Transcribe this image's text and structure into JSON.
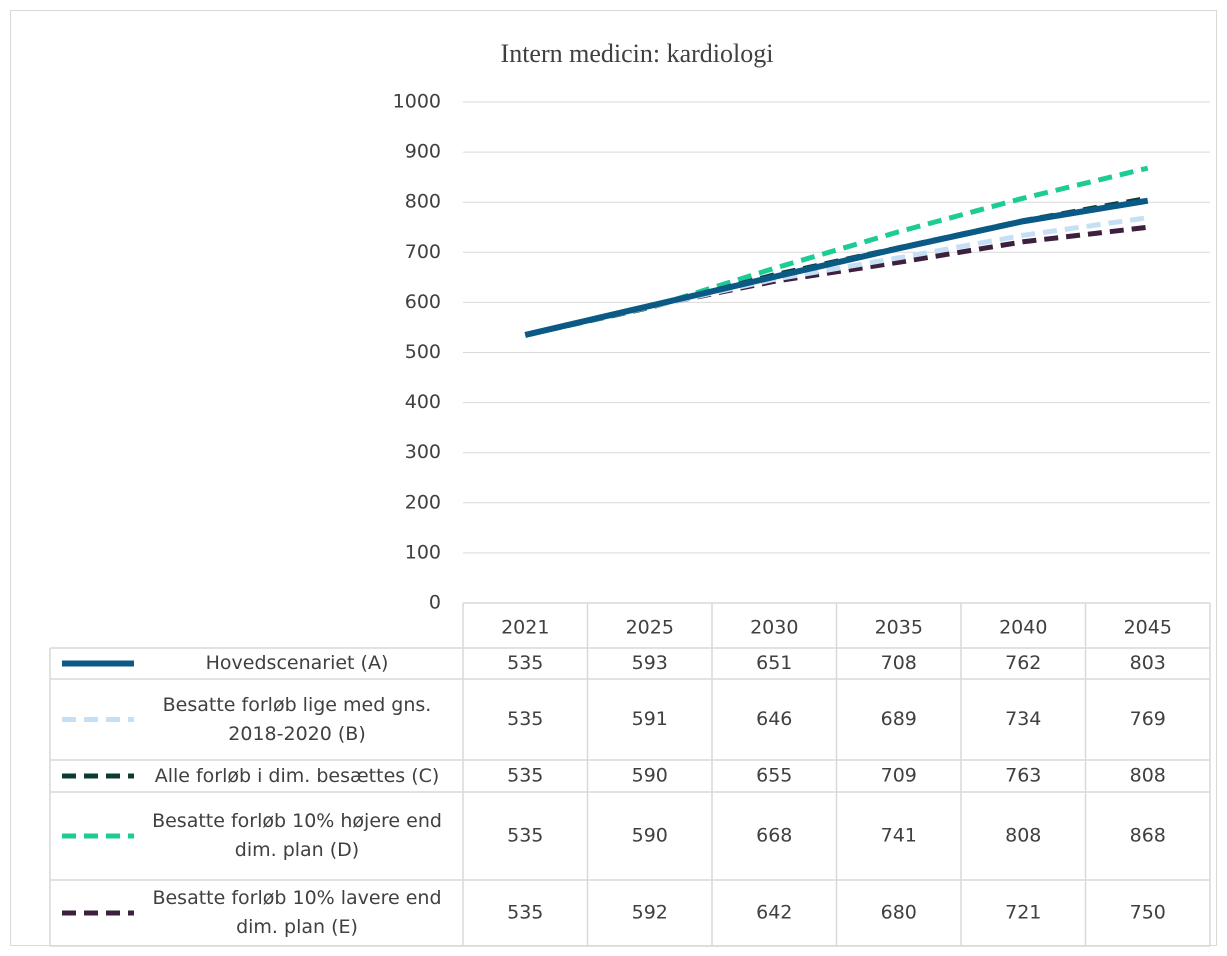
{
  "chart_data": {
    "type": "line",
    "title": "Intern medicin: kardiologi",
    "categories": [
      "2021",
      "2025",
      "2030",
      "2035",
      "2040",
      "2045"
    ],
    "ylim": [
      0,
      1000
    ],
    "yticks": [
      0,
      100,
      200,
      300,
      400,
      500,
      600,
      700,
      800,
      900,
      1000
    ],
    "grid": true,
    "series": [
      {
        "name": "Hovedscenariet (A)",
        "color": "#0b5a85",
        "dash": false,
        "values": [
          535,
          593,
          651,
          708,
          762,
          803
        ]
      },
      {
        "name": "Besatte forløb lige med gns. 2018-2020 (B)",
        "color": "#c5e0f5",
        "dash": true,
        "values": [
          535,
          591,
          646,
          689,
          734,
          769
        ]
      },
      {
        "name": "Alle forløb i dim. besættes (C)",
        "color": "#0d3b34",
        "dash": true,
        "values": [
          535,
          590,
          655,
          709,
          763,
          808
        ]
      },
      {
        "name": "Besatte forløb 10% højere end dim. plan (D)",
        "color": "#1dcc94",
        "dash": true,
        "values": [
          535,
          590,
          668,
          741,
          808,
          868
        ]
      },
      {
        "name": "Besatte forløb 10% lavere end dim. plan (E)",
        "color": "#3d1f3e",
        "dash": true,
        "values": [
          535,
          592,
          642,
          680,
          721,
          750
        ]
      }
    ]
  }
}
